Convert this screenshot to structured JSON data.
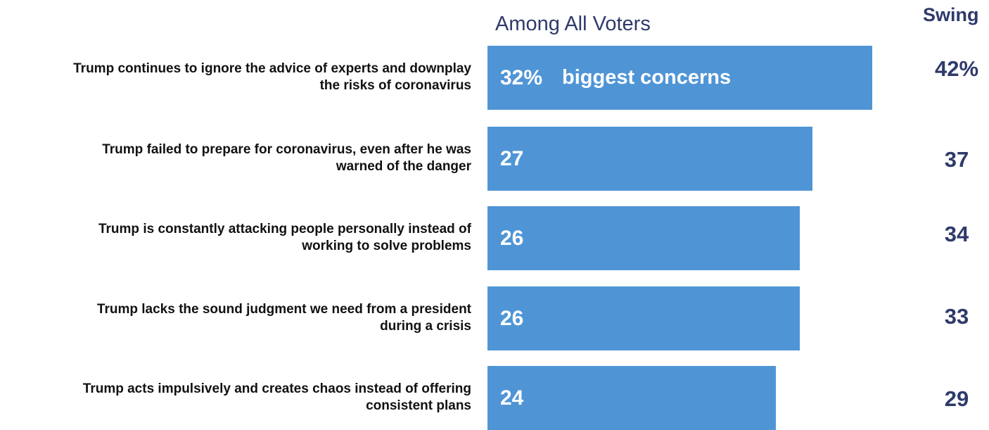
{
  "chart_data": {
    "type": "bar",
    "orientation": "horizontal",
    "column_headers": {
      "all_voters": "Among All Voters",
      "swing": "Swing"
    },
    "categories": [
      [
        "Trump continues to ignore the advice of experts and downplay",
        "the risks of coronavirus"
      ],
      [
        "Trump failed to prepare for coronavirus, even after he was",
        "warned of the danger"
      ],
      [
        "Trump is constantly attacking people personally instead of",
        "working to solve problems"
      ],
      [
        "Trump lacks the sound judgment we need from a president",
        "during a crisis"
      ],
      [
        "Trump acts impulsively and creates chaos instead of offering",
        "consistent plans"
      ]
    ],
    "series": [
      {
        "values": [
          32,
          27,
          26,
          26,
          24
        ]
      },
      {
        "values": [
          42,
          37,
          34,
          33,
          29
        ]
      }
    ],
    "value_labels": {
      "all_voters": [
        "32%",
        "27",
        "26",
        "26",
        "24"
      ],
      "swing": [
        "42%",
        "37",
        "34",
        "33",
        "29"
      ]
    },
    "annotations": [
      {
        "row": 0,
        "text": "biggest concerns"
      }
    ],
    "bar_color": "#4f95d6",
    "header_color": "#2f3a6b"
  }
}
